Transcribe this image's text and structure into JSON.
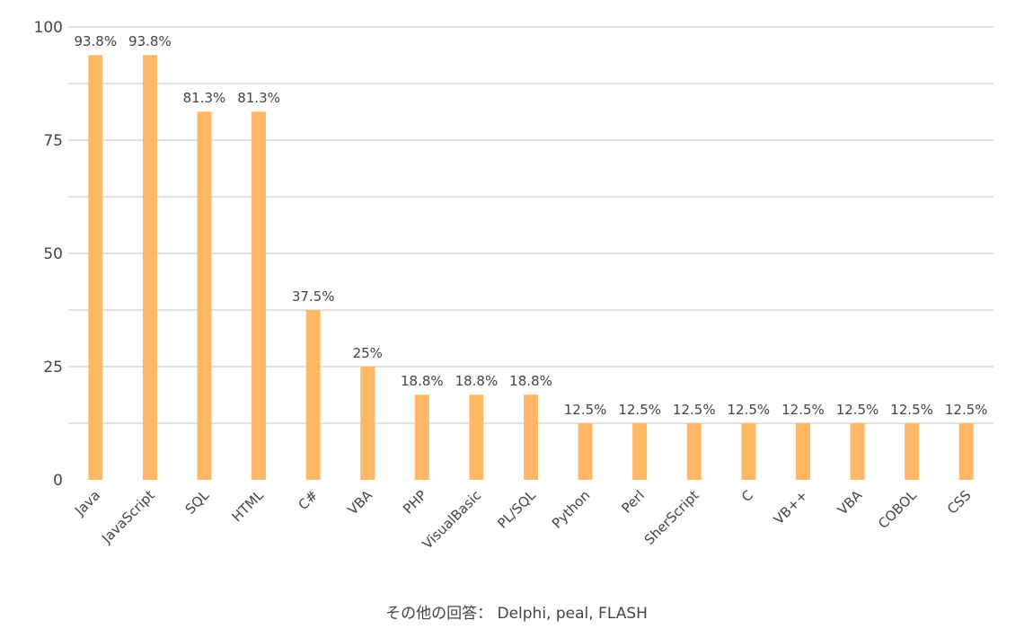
{
  "chart_data": {
    "type": "bar",
    "title": "",
    "xlabel": "",
    "ylabel": "",
    "ylim": [
      0,
      100
    ],
    "yticks": [
      0,
      25,
      50,
      75,
      100
    ],
    "grid": true,
    "bar_color": "#FFB866",
    "grid_color": "#d9d9d9",
    "categories": [
      "Java",
      "JavaScript",
      "SQL",
      "HTML",
      "C#",
      "VBA",
      "PHP",
      "VisualBasic",
      "PL/SQL",
      "Python",
      "Perl",
      "SherScript",
      "C",
      "VB++",
      "VBA",
      "COBOL",
      "CSS"
    ],
    "values": [
      93.8,
      93.8,
      81.3,
      81.3,
      37.5,
      25,
      18.8,
      18.8,
      18.8,
      12.5,
      12.5,
      12.5,
      12.5,
      12.5,
      12.5,
      12.5,
      12.5
    ],
    "data_labels": [
      "93.8%",
      "93.8%",
      "81.3%",
      "81.3%",
      "37.5%",
      "25%",
      "18.8%",
      "18.8%",
      "18.8%",
      "12.5%",
      "12.5%",
      "12.5%",
      "12.5%",
      "12.5%",
      "12.5%",
      "12.5%",
      "12.5%"
    ]
  },
  "footnote": "その他の回答： Delphi, peal, FLASH"
}
